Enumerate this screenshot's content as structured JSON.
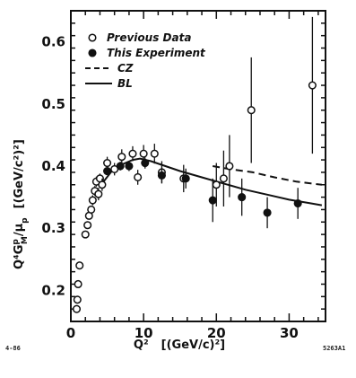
{
  "chart_data": {
    "type": "scatter",
    "title": "",
    "xlabel": "Q² [(GeV/c)²]",
    "ylabel": "Q⁴G_M^p/μ_p [(GeV/c²)²]",
    "xlim": [
      0,
      35
    ],
    "ylim": [
      0.15,
      0.65
    ],
    "x_ticks": [
      0,
      10,
      20,
      30
    ],
    "y_ticks": [
      0.2,
      0.3,
      0.4,
      0.5,
      0.6
    ],
    "grid": false,
    "legend_position": "top-left",
    "legend": [
      {
        "label": "Previous Data",
        "marker": "open-circle"
      },
      {
        "label": "This Experiment",
        "marker": "filled-circle"
      },
      {
        "label": "CZ",
        "style": "dashed"
      },
      {
        "label": "BL",
        "style": "solid"
      }
    ],
    "series": [
      {
        "name": "Previous Data",
        "marker": "open",
        "points": [
          {
            "x": 0.8,
            "y": 0.17,
            "err": 0
          },
          {
            "x": 0.9,
            "y": 0.185,
            "err": 0
          },
          {
            "x": 1.0,
            "y": 0.21,
            "err": 0
          },
          {
            "x": 1.2,
            "y": 0.24,
            "err": 0
          },
          {
            "x": 2.0,
            "y": 0.29,
            "err": 0
          },
          {
            "x": 2.3,
            "y": 0.305,
            "err": 0
          },
          {
            "x": 2.5,
            "y": 0.32,
            "err": 0
          },
          {
            "x": 2.8,
            "y": 0.33,
            "err": 0
          },
          {
            "x": 3.0,
            "y": 0.345,
            "err": 0.008
          },
          {
            "x": 3.3,
            "y": 0.36,
            "err": 0.008
          },
          {
            "x": 3.5,
            "y": 0.375,
            "err": 0.008
          },
          {
            "x": 3.8,
            "y": 0.355,
            "err": 0.01
          },
          {
            "x": 4.0,
            "y": 0.38,
            "err": 0.008
          },
          {
            "x": 4.3,
            "y": 0.37,
            "err": 0.01
          },
          {
            "x": 5.0,
            "y": 0.405,
            "err": 0.01
          },
          {
            "x": 6.0,
            "y": 0.395,
            "err": 0.01
          },
          {
            "x": 7.0,
            "y": 0.415,
            "err": 0.012
          },
          {
            "x": 8.5,
            "y": 0.42,
            "err": 0.012
          },
          {
            "x": 9.2,
            "y": 0.382,
            "err": 0.012
          },
          {
            "x": 10.0,
            "y": 0.42,
            "err": 0.014
          },
          {
            "x": 11.5,
            "y": 0.42,
            "err": 0.016
          },
          {
            "x": 12.5,
            "y": 0.39,
            "err": 0.018
          },
          {
            "x": 15.5,
            "y": 0.38,
            "err": 0.022
          },
          {
            "x": 20.0,
            "y": 0.37,
            "err": 0.035
          },
          {
            "x": 21.0,
            "y": 0.38,
            "err": 0.045
          },
          {
            "x": 21.8,
            "y": 0.4,
            "err": 0.05
          },
          {
            "x": 24.8,
            "y": 0.49,
            "err": 0.085
          },
          {
            "x": 33.2,
            "y": 0.53,
            "err": 0.11
          }
        ]
      },
      {
        "name": "This Experiment",
        "marker": "filled",
        "points": [
          {
            "x": 5.0,
            "y": 0.392,
            "err": 0.006
          },
          {
            "x": 6.8,
            "y": 0.4,
            "err": 0.007
          },
          {
            "x": 8.0,
            "y": 0.4,
            "err": 0.008
          },
          {
            "x": 10.2,
            "y": 0.405,
            "err": 0.009
          },
          {
            "x": 12.5,
            "y": 0.385,
            "err": 0.012
          },
          {
            "x": 15.8,
            "y": 0.38,
            "err": 0.016
          },
          {
            "x": 19.5,
            "y": 0.345,
            "err": 0.035
          },
          {
            "x": 23.5,
            "y": 0.35,
            "err": 0.03
          },
          {
            "x": 27.0,
            "y": 0.325,
            "err": 0.025
          },
          {
            "x": 31.2,
            "y": 0.34,
            "err": 0.025
          }
        ]
      },
      {
        "name": "CZ",
        "style": "dashed",
        "points": [
          {
            "x": 19.5,
            "y": 0.4
          },
          {
            "x": 22,
            "y": 0.395
          },
          {
            "x": 25,
            "y": 0.39
          },
          {
            "x": 28,
            "y": 0.382
          },
          {
            "x": 31,
            "y": 0.375
          },
          {
            "x": 34.5,
            "y": 0.37
          }
        ]
      },
      {
        "name": "BL",
        "style": "solid",
        "points": [
          {
            "x": 4.5,
            "y": 0.375
          },
          {
            "x": 5.5,
            "y": 0.39
          },
          {
            "x": 6.5,
            "y": 0.4
          },
          {
            "x": 7.5,
            "y": 0.405
          },
          {
            "x": 8.5,
            "y": 0.41
          },
          {
            "x": 9.5,
            "y": 0.412
          },
          {
            "x": 11,
            "y": 0.408
          },
          {
            "x": 13,
            "y": 0.4
          },
          {
            "x": 15,
            "y": 0.392
          },
          {
            "x": 18,
            "y": 0.382
          },
          {
            "x": 21,
            "y": 0.372
          },
          {
            "x": 24,
            "y": 0.362
          },
          {
            "x": 27,
            "y": 0.354
          },
          {
            "x": 30,
            "y": 0.346
          },
          {
            "x": 33,
            "y": 0.34
          },
          {
            "x": 34.5,
            "y": 0.337
          }
        ]
      }
    ]
  },
  "labels": {
    "ylabel_main": "Q⁴G",
    "ylabel_super": "p",
    "ylabel_sub": "M",
    "ylabel_div": "/μ",
    "ylabel_div_sub": "p",
    "ylabel_units": "[(GeV/c²)²]",
    "xlabel_main": "Q²",
    "xlabel_units": "[(GeV/c)²]",
    "footer_left": "4-86",
    "footer_right": "5263A1"
  },
  "colors": {
    "ink": "#111111",
    "background": "#ffffff"
  }
}
